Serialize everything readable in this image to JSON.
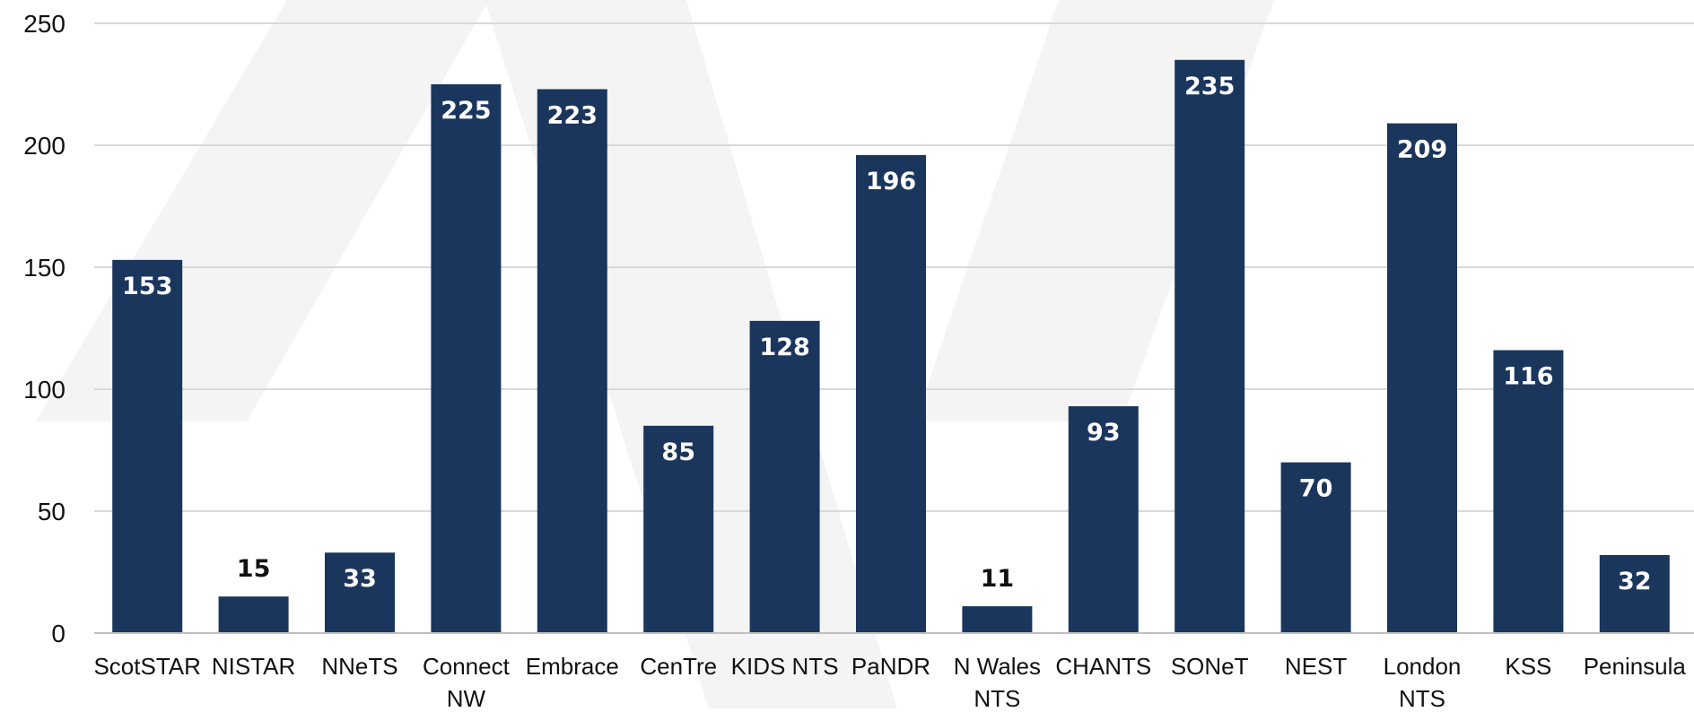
{
  "chart_data": {
    "type": "bar",
    "categories": [
      "ScotSTAR",
      "NISTAR",
      "NNeTS",
      "Connect NW",
      "Embrace",
      "CenTre",
      "KIDS NTS",
      "PaNDR",
      "N Wales NTS",
      "CHANTS",
      "SONeT",
      "NEST",
      "London NTS",
      "KSS",
      "Peninsula"
    ],
    "category_label_lines": [
      [
        "ScotSTAR"
      ],
      [
        "NISTAR"
      ],
      [
        "NNeTS"
      ],
      [
        "Connect",
        "NW"
      ],
      [
        "Embrace"
      ],
      [
        "CenTre"
      ],
      [
        "KIDS NTS"
      ],
      [
        "PaNDR"
      ],
      [
        "N Wales",
        "NTS"
      ],
      [
        "CHANTS"
      ],
      [
        "SONeT"
      ],
      [
        "NEST"
      ],
      [
        "London",
        "NTS"
      ],
      [
        "KSS"
      ],
      [
        "Peninsula"
      ]
    ],
    "values": [
      153,
      15,
      33,
      225,
      223,
      85,
      128,
      196,
      11,
      93,
      235,
      70,
      209,
      116,
      32
    ],
    "title": "",
    "xlabel": "",
    "ylabel": "",
    "ylim": [
      0,
      250
    ],
    "yticks": [
      0,
      50,
      100,
      150,
      200,
      250
    ],
    "grid": true,
    "legend": "none",
    "data_labels": true,
    "colors": {
      "bar": "#1b365d",
      "grid": "#d9d9d9",
      "axis": "#bfbfbf",
      "label_inside": "#ffffff",
      "label_outside": "#111111",
      "watermark": "#f4f4f4"
    }
  }
}
